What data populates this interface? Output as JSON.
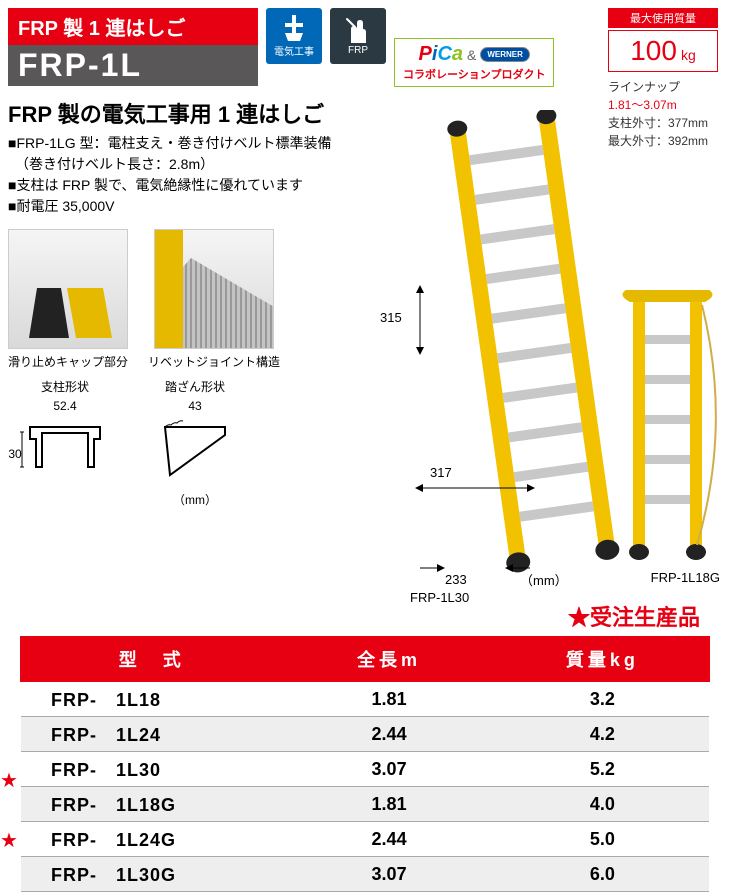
{
  "header": {
    "title_top": "FRP 製 1 連はしご",
    "title_bottom": "FRP-1L",
    "badge1_label": "電気工事",
    "badge2_label": "FRP",
    "collab": {
      "brand": "PiCa",
      "amp": "&",
      "partner": "WERNER",
      "text": "コラボレーションプロダクト"
    }
  },
  "spec_box": {
    "max_label": "最大使用質量",
    "max_value": "100",
    "max_unit": "kg",
    "lineup_label": "ラインナップ",
    "lineup_range": "1.81〜3.07m",
    "dim1": "支柱外寸：377mm",
    "dim2": "最大外寸：392mm"
  },
  "subtitle": "FRP 製の電気工事用 1 連はしご",
  "descriptions": [
    "■FRP-1LG 型：電柱支え・巻き付けベルト標準装備",
    "　（巻き付けベルト長さ：2.8m）",
    "■支柱は FRP 製で、電気絶縁性に優れています",
    "■耐電圧 35,000V"
  ],
  "details": {
    "d1_caption": "滑り止めキャップ部分",
    "d2_caption": "リベットジョイント構造"
  },
  "shapes": {
    "col1_title": "支柱形状",
    "col1_w": "52.4",
    "col1_h": "30",
    "col2_title": "踏ざん形状",
    "col2_w": "43",
    "unit": "（mm）"
  },
  "ladder": {
    "dim_v": "315",
    "dim_h": "317",
    "dim_base": "233",
    "unit": "（mm）",
    "label_main": "FRP-1L30",
    "label_small": "FRP-1L18G"
  },
  "order_note": "★受注生産品",
  "table": {
    "headers": [
      "型　式",
      "全長m",
      "質量kg"
    ],
    "rows": [
      {
        "model": "FRP-　1L18",
        "len": "1.81",
        "mass": "3.2",
        "alt": false,
        "star": false
      },
      {
        "model": "FRP-　1L24",
        "len": "2.44",
        "mass": "4.2",
        "alt": true,
        "star": false
      },
      {
        "model": "FRP-　1L30",
        "len": "3.07",
        "mass": "5.2",
        "alt": false,
        "star": false
      },
      {
        "model": "FRP-　1L18G",
        "len": "1.81",
        "mass": "4.0",
        "alt": true,
        "star": true
      },
      {
        "model": "FRP-　1L24G",
        "len": "2.44",
        "mass": "5.0",
        "alt": false,
        "star": false
      },
      {
        "model": "FRP-　1L30G",
        "len": "3.07",
        "mass": "6.0",
        "alt": true,
        "star": true
      }
    ]
  },
  "colors": {
    "accent_red": "#e60012",
    "accent_gray": "#595757",
    "badge_blue": "#0068b7",
    "ladder_yellow": "#f2c200"
  }
}
